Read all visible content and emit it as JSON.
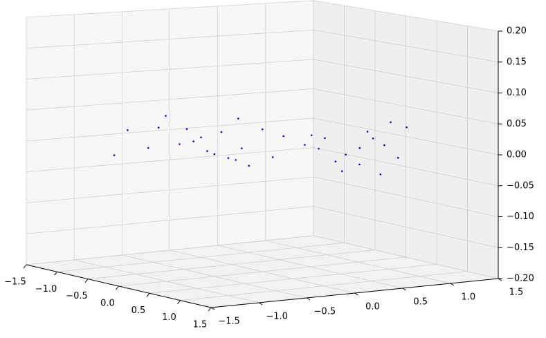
{
  "chart_data": {
    "type": "scatter3d",
    "color": "#0000ff",
    "x": [
      -0.26,
      -0.57,
      -0.51,
      -0.34,
      -0.07,
      0.07,
      0.98,
      -0.4,
      -0.37,
      -0.23,
      -0.39,
      -0.53,
      -0.24,
      -0.58,
      -0.07,
      0.14,
      0.58,
      -0.17,
      -0.37,
      0.59,
      0.38,
      0.44,
      0.78,
      1.05,
      0.68,
      0.53,
      1.0,
      1.36,
      0.31,
      0.82,
      1.21,
      0.62,
      0.77,
      0.77,
      0.54,
      0.21
    ],
    "y": [
      -1.38,
      -1.04,
      -0.68,
      -0.5,
      -0.53,
      -0.4,
      -0.77,
      -0.17,
      0.24,
      0.37,
      0.0,
      -0.85,
      -0.71,
      -0.71,
      -0.17,
      -0.59,
      -0.65,
      -0.53,
      -0.55,
      -0.27,
      0.2,
      0.37,
      0.37,
      0.34,
      0.72,
      1.0,
      0.19,
      0.36,
      0.39,
      0.49,
      0.64,
      0.7,
      0.27,
      0.78,
      1.16,
      0.38
    ],
    "z": [
      0.0,
      0.03,
      0.05,
      0.01,
      0.0,
      -0.01,
      0.0,
      0.02,
      0.02,
      0.01,
      0.04,
      0.0,
      0.01,
      0.03,
      0.0,
      0.0,
      0.0,
      0.02,
      0.03,
      0.0,
      0.01,
      0.02,
      0.0,
      -0.01,
      0.02,
      0.04,
      -0.02,
      -0.02,
      0.0,
      0.01,
      0.0,
      0.03,
      -0.01,
      0.01,
      0.03,
      0.02
    ],
    "xlim": [
      -1.5,
      1.5
    ],
    "ylim": [
      -1.5,
      1.5
    ],
    "zlim": [
      -0.2,
      0.2
    ],
    "xticks": [
      {
        "value": -1.5,
        "label": "−1.5"
      },
      {
        "value": -1,
        "label": "−1.0"
      },
      {
        "value": -0.5,
        "label": "−0.5"
      },
      {
        "value": 0,
        "label": "0.0"
      },
      0.5,
      {
        "value": 1,
        "label": "1.0"
      },
      1.5
    ],
    "yticks": [
      {
        "value": -1.5,
        "label": "−1.5"
      },
      {
        "value": -1,
        "label": "−1.0"
      },
      {
        "value": -0.5,
        "label": "−0.5"
      },
      {
        "value": 0,
        "label": "0.0"
      },
      0.5,
      {
        "value": 1,
        "label": "1.0"
      },
      1.5
    ],
    "zticks": [
      {
        "value": -0.2,
        "label": "−0.20"
      },
      {
        "value": -0.15,
        "label": "−0.15"
      },
      {
        "value": -0.1,
        "label": "−0.10"
      },
      {
        "value": -0.05,
        "label": "−0.05"
      },
      {
        "value": 0,
        "label": "0.00"
      },
      {
        "value": 0.05,
        "label": "0.05"
      },
      {
        "value": 0.1,
        "label": "0.10"
      },
      {
        "value": 0.15,
        "label": "0.15"
      },
      {
        "value": 0.2,
        "label": "0.20"
      }
    ],
    "grid": true
  }
}
